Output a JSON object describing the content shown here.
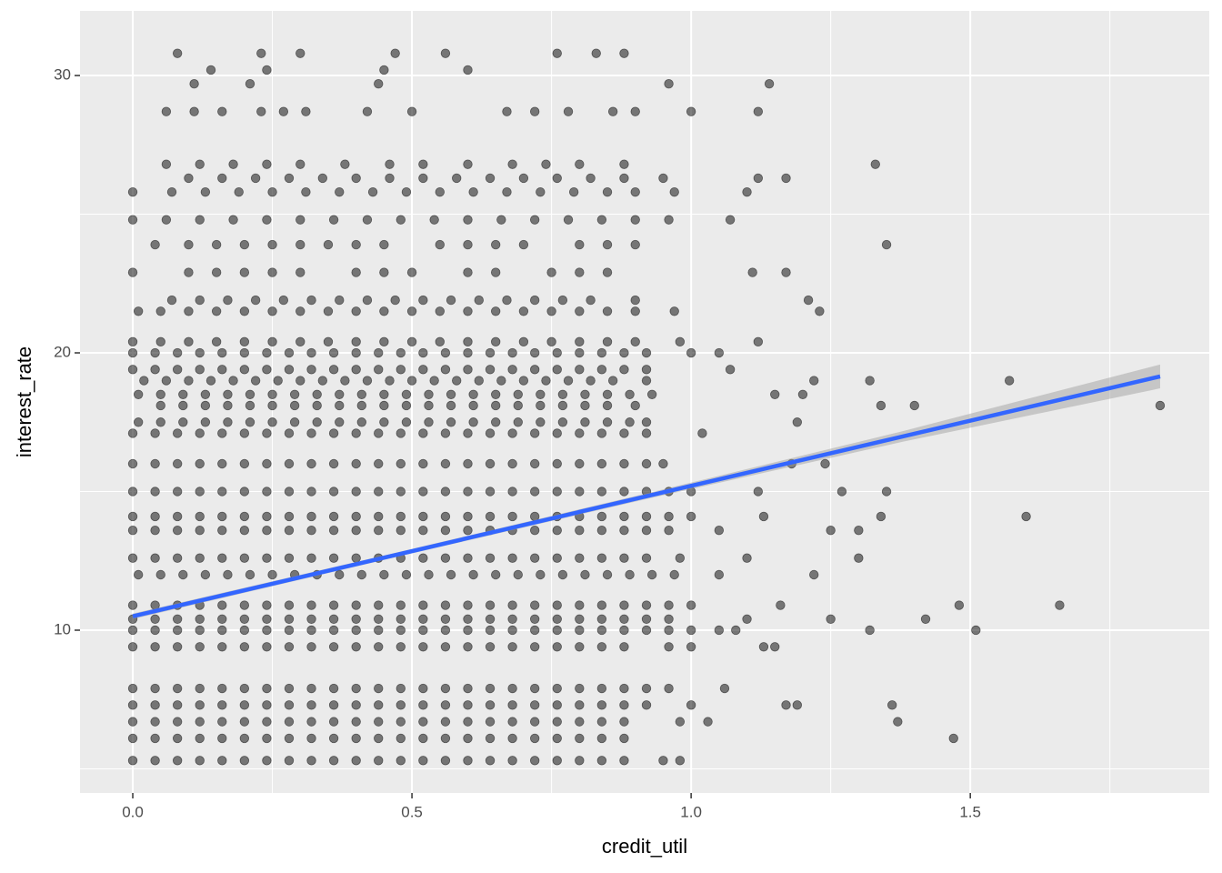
{
  "chart_data": {
    "type": "scatter",
    "x_label": "credit_util",
    "y_label": "interest_rate",
    "xlim": [
      -0.0945,
      1.928
    ],
    "ylim": [
      4.13,
      32.33
    ],
    "xticks": [
      {
        "value": 0,
        "label": "0.0"
      },
      {
        "value": 0.5,
        "label": "0.5"
      },
      {
        "value": 1,
        "label": "1.0"
      },
      {
        "value": 1.5,
        "label": "1.5"
      }
    ],
    "yticks": [
      10,
      20,
      30
    ],
    "x_minor_breaks": [
      0.25,
      0.75,
      1.25,
      1.75
    ],
    "y_minor_breaks": [
      5,
      15,
      25
    ],
    "grid": true,
    "point_color": "#000000",
    "points": [
      {
        "y": 5.3,
        "x": [
          0,
          0.04,
          0.08,
          0.12,
          0.16,
          0.2,
          0.24,
          0.28,
          0.32,
          0.36,
          0.4,
          0.44,
          0.48,
          0.52,
          0.56,
          0.6,
          0.64,
          0.68,
          0.72,
          0.76,
          0.8,
          0.84,
          0.88,
          0.95,
          0.98
        ]
      },
      {
        "y": 6.1,
        "x": [
          0,
          0.04,
          0.08,
          0.12,
          0.16,
          0.2,
          0.24,
          0.28,
          0.32,
          0.36,
          0.4,
          0.44,
          0.48,
          0.52,
          0.56,
          0.6,
          0.64,
          0.68,
          0.72,
          0.76,
          0.8,
          0.84,
          0.88,
          1.47
        ]
      },
      {
        "y": 6.7,
        "x": [
          0,
          0.04,
          0.08,
          0.12,
          0.16,
          0.2,
          0.24,
          0.28,
          0.32,
          0.36,
          0.4,
          0.44,
          0.48,
          0.52,
          0.56,
          0.6,
          0.64,
          0.68,
          0.72,
          0.76,
          0.8,
          0.84,
          0.88,
          0.98,
          1.03,
          1.37
        ]
      },
      {
        "y": 7.3,
        "x": [
          0,
          0.04,
          0.08,
          0.12,
          0.16,
          0.2,
          0.24,
          0.28,
          0.32,
          0.36,
          0.4,
          0.44,
          0.48,
          0.52,
          0.56,
          0.6,
          0.64,
          0.68,
          0.72,
          0.76,
          0.8,
          0.84,
          0.88,
          0.92,
          1.0,
          1.17,
          1.19,
          1.36
        ]
      },
      {
        "y": 7.9,
        "x": [
          0,
          0.04,
          0.08,
          0.12,
          0.16,
          0.2,
          0.24,
          0.28,
          0.32,
          0.36,
          0.4,
          0.44,
          0.48,
          0.52,
          0.56,
          0.6,
          0.64,
          0.68,
          0.72,
          0.76,
          0.8,
          0.84,
          0.88,
          0.92,
          0.96,
          1.06
        ]
      },
      {
        "y": 9.4,
        "x": [
          0,
          0.04,
          0.08,
          0.12,
          0.16,
          0.2,
          0.24,
          0.28,
          0.32,
          0.36,
          0.4,
          0.44,
          0.48,
          0.52,
          0.56,
          0.6,
          0.64,
          0.68,
          0.72,
          0.76,
          0.8,
          0.84,
          0.88,
          0.96,
          1.0,
          1.13,
          1.15
        ]
      },
      {
        "y": 10.0,
        "x": [
          0,
          0.04,
          0.08,
          0.12,
          0.16,
          0.2,
          0.24,
          0.28,
          0.32,
          0.36,
          0.4,
          0.44,
          0.48,
          0.52,
          0.56,
          0.6,
          0.64,
          0.68,
          0.72,
          0.76,
          0.8,
          0.84,
          0.88,
          0.92,
          0.96,
          1.0,
          1.05,
          1.08,
          1.32,
          1.51
        ]
      },
      {
        "y": 10.4,
        "x": [
          0,
          0.04,
          0.08,
          0.12,
          0.16,
          0.2,
          0.24,
          0.28,
          0.32,
          0.36,
          0.4,
          0.44,
          0.48,
          0.52,
          0.56,
          0.6,
          0.64,
          0.68,
          0.72,
          0.76,
          0.8,
          0.84,
          0.88,
          0.92,
          0.96,
          1.1,
          1.25,
          1.42
        ]
      },
      {
        "y": 10.9,
        "x": [
          0,
          0.04,
          0.08,
          0.12,
          0.16,
          0.2,
          0.24,
          0.28,
          0.32,
          0.36,
          0.4,
          0.44,
          0.48,
          0.52,
          0.56,
          0.6,
          0.64,
          0.68,
          0.72,
          0.76,
          0.8,
          0.84,
          0.88,
          0.92,
          0.96,
          1.0,
          1.16,
          1.48,
          1.66
        ]
      },
      {
        "y": 12.0,
        "x": [
          0.01,
          0.05,
          0.09,
          0.13,
          0.17,
          0.21,
          0.25,
          0.29,
          0.33,
          0.37,
          0.41,
          0.45,
          0.49,
          0.53,
          0.57,
          0.61,
          0.65,
          0.69,
          0.73,
          0.77,
          0.81,
          0.85,
          0.89,
          0.93,
          0.97,
          1.05,
          1.22
        ]
      },
      {
        "y": 12.6,
        "x": [
          0,
          0.04,
          0.08,
          0.12,
          0.16,
          0.2,
          0.24,
          0.28,
          0.32,
          0.36,
          0.4,
          0.44,
          0.48,
          0.52,
          0.56,
          0.6,
          0.64,
          0.68,
          0.72,
          0.76,
          0.8,
          0.84,
          0.88,
          0.92,
          0.98,
          1.1,
          1.3
        ]
      },
      {
        "y": 13.6,
        "x": [
          0,
          0.04,
          0.08,
          0.12,
          0.16,
          0.2,
          0.24,
          0.28,
          0.32,
          0.36,
          0.4,
          0.44,
          0.48,
          0.52,
          0.56,
          0.6,
          0.64,
          0.68,
          0.72,
          0.76,
          0.8,
          0.84,
          0.88,
          0.92,
          0.96,
          1.05,
          1.25,
          1.3
        ]
      },
      {
        "y": 14.1,
        "x": [
          0,
          0.04,
          0.08,
          0.12,
          0.16,
          0.2,
          0.24,
          0.28,
          0.32,
          0.36,
          0.4,
          0.44,
          0.48,
          0.52,
          0.56,
          0.6,
          0.64,
          0.68,
          0.72,
          0.76,
          0.8,
          0.84,
          0.88,
          0.92,
          0.96,
          1.0,
          1.13,
          1.34,
          1.6
        ]
      },
      {
        "y": 15.0,
        "x": [
          0,
          0.04,
          0.08,
          0.12,
          0.16,
          0.2,
          0.24,
          0.28,
          0.32,
          0.36,
          0.4,
          0.44,
          0.48,
          0.52,
          0.56,
          0.6,
          0.64,
          0.68,
          0.72,
          0.76,
          0.8,
          0.84,
          0.88,
          0.92,
          0.96,
          1.0,
          1.12,
          1.27,
          1.35
        ]
      },
      {
        "y": 16.0,
        "x": [
          0,
          0.04,
          0.08,
          0.12,
          0.16,
          0.2,
          0.24,
          0.28,
          0.32,
          0.36,
          0.4,
          0.44,
          0.48,
          0.52,
          0.56,
          0.6,
          0.64,
          0.68,
          0.72,
          0.76,
          0.8,
          0.84,
          0.88,
          0.92,
          0.95,
          1.18,
          1.24
        ]
      },
      {
        "y": 17.1,
        "x": [
          0,
          0.04,
          0.08,
          0.12,
          0.16,
          0.2,
          0.24,
          0.28,
          0.32,
          0.36,
          0.4,
          0.44,
          0.48,
          0.52,
          0.56,
          0.6,
          0.64,
          0.68,
          0.72,
          0.76,
          0.8,
          0.84,
          0.88,
          0.92,
          1.02
        ]
      },
      {
        "y": 17.5,
        "x": [
          0.01,
          0.05,
          0.09,
          0.13,
          0.17,
          0.21,
          0.25,
          0.29,
          0.33,
          0.37,
          0.41,
          0.45,
          0.49,
          0.53,
          0.57,
          0.61,
          0.65,
          0.69,
          0.73,
          0.77,
          0.81,
          0.85,
          0.89,
          0.92,
          1.19
        ]
      },
      {
        "y": 18.1,
        "x": [
          0.05,
          0.09,
          0.13,
          0.17,
          0.21,
          0.25,
          0.29,
          0.33,
          0.37,
          0.41,
          0.45,
          0.49,
          0.53,
          0.57,
          0.61,
          0.65,
          0.69,
          0.73,
          0.77,
          0.81,
          0.85,
          0.9,
          1.34,
          1.4,
          1.84
        ]
      },
      {
        "y": 18.5,
        "x": [
          0.01,
          0.05,
          0.09,
          0.13,
          0.17,
          0.21,
          0.25,
          0.29,
          0.33,
          0.37,
          0.41,
          0.45,
          0.49,
          0.53,
          0.57,
          0.61,
          0.65,
          0.69,
          0.73,
          0.77,
          0.81,
          0.85,
          0.89,
          0.93,
          1.15,
          1.2
        ]
      },
      {
        "y": 19.0,
        "x": [
          0.02,
          0.06,
          0.1,
          0.14,
          0.18,
          0.22,
          0.26,
          0.3,
          0.34,
          0.38,
          0.42,
          0.46,
          0.5,
          0.54,
          0.58,
          0.62,
          0.66,
          0.7,
          0.74,
          0.78,
          0.82,
          0.86,
          0.92,
          1.22,
          1.32,
          1.57
        ]
      },
      {
        "y": 19.4,
        "x": [
          0,
          0.04,
          0.08,
          0.12,
          0.16,
          0.2,
          0.24,
          0.28,
          0.32,
          0.36,
          0.4,
          0.44,
          0.48,
          0.52,
          0.56,
          0.6,
          0.64,
          0.68,
          0.72,
          0.76,
          0.8,
          0.84,
          0.88,
          0.92,
          1.07
        ]
      },
      {
        "y": 20.0,
        "x": [
          0,
          0.04,
          0.08,
          0.12,
          0.16,
          0.2,
          0.24,
          0.28,
          0.32,
          0.36,
          0.4,
          0.44,
          0.48,
          0.52,
          0.56,
          0.6,
          0.64,
          0.68,
          0.72,
          0.76,
          0.8,
          0.84,
          0.88,
          0.92,
          1.0,
          1.05
        ]
      },
      {
        "y": 20.4,
        "x": [
          0,
          0.05,
          0.1,
          0.15,
          0.2,
          0.25,
          0.3,
          0.35,
          0.4,
          0.45,
          0.5,
          0.55,
          0.6,
          0.65,
          0.7,
          0.75,
          0.8,
          0.85,
          0.9,
          0.98,
          1.12
        ]
      },
      {
        "y": 21.5,
        "x": [
          0.01,
          0.05,
          0.1,
          0.15,
          0.2,
          0.25,
          0.3,
          0.35,
          0.4,
          0.45,
          0.5,
          0.55,
          0.6,
          0.65,
          0.7,
          0.75,
          0.8,
          0.85,
          0.9,
          0.97,
          1.23
        ]
      },
      {
        "y": 21.9,
        "x": [
          0.07,
          0.12,
          0.17,
          0.22,
          0.27,
          0.32,
          0.37,
          0.42,
          0.47,
          0.52,
          0.57,
          0.62,
          0.67,
          0.72,
          0.77,
          0.82,
          0.9,
          1.21
        ]
      },
      {
        "y": 22.9,
        "x": [
          0,
          0.1,
          0.15,
          0.2,
          0.25,
          0.3,
          0.4,
          0.45,
          0.5,
          0.6,
          0.65,
          0.75,
          0.8,
          0.85,
          1.11,
          1.17
        ]
      },
      {
        "y": 23.9,
        "x": [
          0.04,
          0.1,
          0.15,
          0.2,
          0.25,
          0.3,
          0.35,
          0.4,
          0.45,
          0.55,
          0.6,
          0.65,
          0.7,
          0.8,
          0.85,
          0.9,
          1.35
        ]
      },
      {
        "y": 24.8,
        "x": [
          0,
          0.06,
          0.12,
          0.18,
          0.24,
          0.3,
          0.36,
          0.42,
          0.48,
          0.54,
          0.6,
          0.66,
          0.72,
          0.78,
          0.84,
          0.9,
          0.96,
          1.07
        ]
      },
      {
        "y": 25.8,
        "x": [
          0,
          0.07,
          0.13,
          0.19,
          0.25,
          0.31,
          0.37,
          0.43,
          0.49,
          0.55,
          0.61,
          0.67,
          0.73,
          0.79,
          0.85,
          0.9,
          0.97,
          1.1
        ]
      },
      {
        "y": 26.3,
        "x": [
          0.1,
          0.16,
          0.22,
          0.28,
          0.34,
          0.4,
          0.46,
          0.52,
          0.58,
          0.64,
          0.7,
          0.76,
          0.82,
          0.88,
          0.95,
          1.12,
          1.17
        ]
      },
      {
        "y": 26.8,
        "x": [
          0.06,
          0.12,
          0.18,
          0.24,
          0.3,
          0.38,
          0.46,
          0.52,
          0.6,
          0.68,
          0.74,
          0.8,
          0.88,
          1.33
        ]
      },
      {
        "y": 28.7,
        "x": [
          0.06,
          0.11,
          0.16,
          0.23,
          0.27,
          0.31,
          0.42,
          0.5,
          0.67,
          0.72,
          0.78,
          0.86,
          0.9,
          1.0,
          1.12
        ]
      },
      {
        "y": 29.7,
        "x": [
          0.11,
          0.21,
          0.44,
          0.96,
          1.14
        ]
      },
      {
        "y": 30.2,
        "x": [
          0.14,
          0.24,
          0.45,
          0.6
        ]
      },
      {
        "y": 30.8,
        "x": [
          0.08,
          0.23,
          0.3,
          0.47,
          0.56,
          0.76,
          0.83,
          0.88
        ]
      }
    ],
    "fit": {
      "color": "#3366ff",
      "band_color": "#999999",
      "x": [
        0,
        0.46,
        0.92,
        1.38,
        1.84
      ],
      "y": [
        10.5,
        12.66,
        14.83,
        16.99,
        19.15
      ],
      "lower": [
        10.4,
        12.58,
        14.73,
        16.8,
        18.72
      ],
      "upper": [
        10.6,
        12.74,
        14.93,
        17.18,
        19.58
      ]
    }
  }
}
